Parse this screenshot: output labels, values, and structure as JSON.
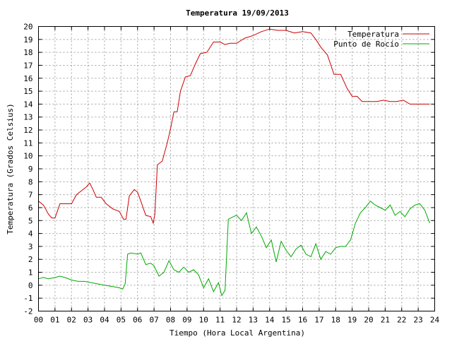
{
  "chart_data": {
    "type": "line",
    "title": "Temperatura 19/09/2013",
    "xlabel": "Tiempo (Hora Local Argentina)",
    "ylabel": "Temperatura (Grados Celsius)",
    "xlim": [
      0,
      24
    ],
    "ylim": [
      -2,
      20
    ],
    "x_ticks": [
      "00",
      "01",
      "02",
      "03",
      "04",
      "05",
      "06",
      "07",
      "08",
      "09",
      "10",
      "11",
      "12",
      "13",
      "14",
      "15",
      "16",
      "17",
      "18",
      "19",
      "20",
      "21",
      "22",
      "23",
      "24"
    ],
    "y_ticks": [
      -2,
      -1,
      0,
      1,
      2,
      3,
      4,
      5,
      6,
      7,
      8,
      9,
      10,
      11,
      12,
      13,
      14,
      15,
      16,
      17,
      18,
      19,
      20
    ],
    "grid": true,
    "legend_position": "top-right",
    "series": [
      {
        "name": "Temperatura",
        "color": "#cc0000",
        "x": [
          0,
          0.3,
          0.6,
          0.8,
          1.0,
          1.3,
          1.6,
          2.0,
          2.3,
          2.6,
          2.9,
          3.1,
          3.3,
          3.5,
          3.8,
          4.1,
          4.5,
          4.9,
          5.15,
          5.3,
          5.5,
          5.8,
          6.0,
          6.2,
          6.5,
          6.8,
          6.95,
          7.05,
          7.2,
          7.5,
          7.8,
          8.0,
          8.2,
          8.4,
          8.6,
          8.9,
          9.2,
          9.5,
          9.8,
          10.2,
          10.6,
          11.0,
          11.3,
          11.6,
          12.0,
          12.5,
          13.0,
          13.5,
          14.0,
          14.5,
          15.0,
          15.5,
          16.0,
          16.5,
          16.8,
          17.1,
          17.5,
          17.9,
          18.3,
          18.7,
          19.0,
          19.3,
          19.6,
          19.9,
          20.2,
          20.5,
          20.9,
          21.3,
          21.7,
          22.1,
          22.5,
          22.9,
          23.3,
          23.7
        ],
        "values": [
          6.5,
          6.2,
          5.5,
          5.2,
          5.2,
          6.3,
          6.3,
          6.3,
          7.0,
          7.3,
          7.6,
          7.9,
          7.4,
          6.8,
          6.8,
          6.3,
          5.9,
          5.7,
          5.1,
          5.1,
          6.9,
          7.4,
          7.2,
          6.5,
          5.4,
          5.3,
          4.8,
          5.5,
          9.3,
          9.6,
          11.0,
          12.1,
          13.4,
          13.4,
          15.0,
          16.1,
          16.2,
          17.1,
          17.9,
          18.0,
          18.8,
          18.8,
          18.6,
          18.7,
          18.7,
          19.1,
          19.3,
          19.6,
          19.8,
          19.7,
          19.7,
          19.5,
          19.6,
          19.5,
          19.0,
          18.4,
          17.8,
          16.3,
          16.3,
          15.2,
          14.6,
          14.6,
          14.2,
          14.2,
          14.2,
          14.2,
          14.3,
          14.2,
          14.2,
          14.3,
          14.0,
          14.0,
          14.0,
          14.0
        ]
      },
      {
        "name": "Punto de Rocío",
        "color": "#00aa00",
        "x": [
          0,
          0.3,
          0.6,
          1.0,
          1.3,
          1.6,
          2.0,
          2.4,
          2.8,
          3.2,
          3.6,
          4.0,
          4.5,
          4.9,
          5.1,
          5.25,
          5.4,
          5.6,
          6.0,
          6.2,
          6.5,
          6.8,
          7.0,
          7.3,
          7.6,
          7.9,
          8.2,
          8.5,
          8.8,
          9.1,
          9.4,
          9.7,
          10.0,
          10.3,
          10.6,
          10.9,
          11.1,
          11.3,
          11.5,
          11.8,
          12.0,
          12.3,
          12.6,
          12.9,
          13.2,
          13.5,
          13.8,
          14.1,
          14.4,
          14.7,
          15.0,
          15.3,
          15.6,
          15.9,
          16.2,
          16.5,
          16.8,
          17.1,
          17.4,
          17.7,
          18.0,
          18.3,
          18.6,
          18.9,
          19.2,
          19.5,
          19.8,
          20.1,
          20.4,
          20.7,
          21.0,
          21.3,
          21.6,
          21.9,
          22.2,
          22.5,
          22.8,
          23.1,
          23.4,
          23.7
        ],
        "values": [
          0.5,
          0.6,
          0.5,
          0.6,
          0.7,
          0.6,
          0.4,
          0.3,
          0.3,
          0.2,
          0.1,
          0.0,
          -0.1,
          -0.2,
          -0.3,
          0.1,
          2.4,
          2.5,
          2.4,
          2.5,
          1.6,
          1.7,
          1.5,
          0.7,
          1.0,
          1.9,
          1.2,
          1.0,
          1.4,
          1.0,
          1.2,
          0.8,
          -0.2,
          0.5,
          -0.5,
          0.2,
          -0.8,
          -0.4,
          5.1,
          5.3,
          5.4,
          5.0,
          5.6,
          4.0,
          4.5,
          3.8,
          2.9,
          3.5,
          1.8,
          3.4,
          2.7,
          2.2,
          2.8,
          3.1,
          2.4,
          2.2,
          3.2,
          2.0,
          2.6,
          2.4,
          2.9,
          3.0,
          3.0,
          3.5,
          4.8,
          5.6,
          6.0,
          6.5,
          6.2,
          6.0,
          5.8,
          6.2,
          5.4,
          5.7,
          5.3,
          5.9,
          6.2,
          6.3,
          5.8,
          4.8
        ]
      }
    ]
  }
}
